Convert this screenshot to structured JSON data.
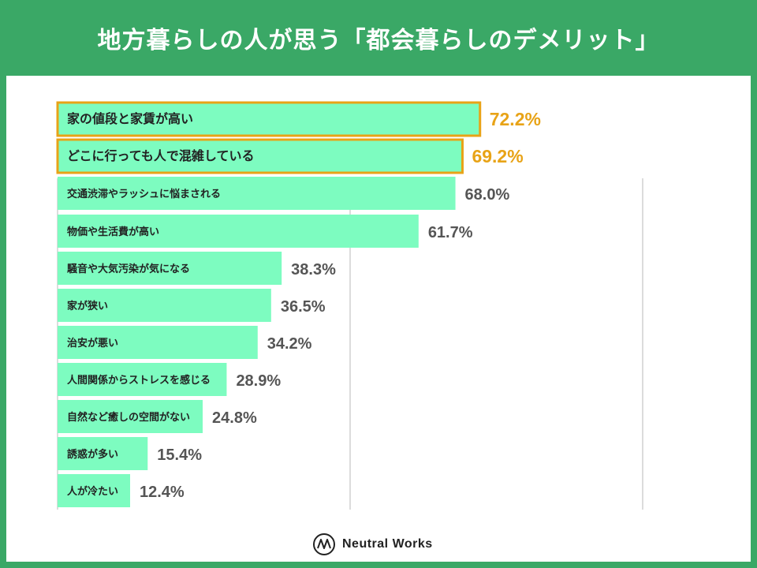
{
  "header": {
    "title": "地方暮らしの人が思う「都会暮らしのデメリット」"
  },
  "colors": {
    "background": "#3aa866",
    "bar": "#7dfcc0",
    "highlight_border": "#e8a317",
    "value_text": "#555555",
    "highlight_text": "#e8a317",
    "grid": "#d0d0d0"
  },
  "chart_data": {
    "type": "bar",
    "orientation": "horizontal",
    "title": "地方暮らしの人が思う「都会暮らしのデメリット」",
    "unit": "%",
    "xlim": [
      0,
      100
    ],
    "gridlines": [
      0,
      50,
      100
    ],
    "highlighted": [
      "家の値段と家賃が高い",
      "どこに行っても人で混雑している"
    ],
    "categories": [
      "家の値段と家賃が高い",
      "どこに行っても人で混雑している",
      "交通渋滞やラッシュに悩まされる",
      "物価や生活費が高い",
      "騒音や大気汚染が気になる",
      "家が狭い",
      "治安が悪い",
      "人間関係からストレスを感じる",
      "自然など癒しの空間がない",
      "誘惑が多い",
      "人が冷たい"
    ],
    "values": [
      72.2,
      69.2,
      68.0,
      61.7,
      38.3,
      36.5,
      34.2,
      28.9,
      24.8,
      15.4,
      12.4
    ],
    "value_labels": [
      "72.2%",
      "69.2%",
      "68.0%",
      "61.7%",
      "38.3%",
      "36.5%",
      "34.2%",
      "28.9%",
      "24.8%",
      "15.4%",
      "12.4%"
    ]
  },
  "logo": {
    "text": "Neutral Works",
    "icon": "neutral-works-logo-icon"
  }
}
